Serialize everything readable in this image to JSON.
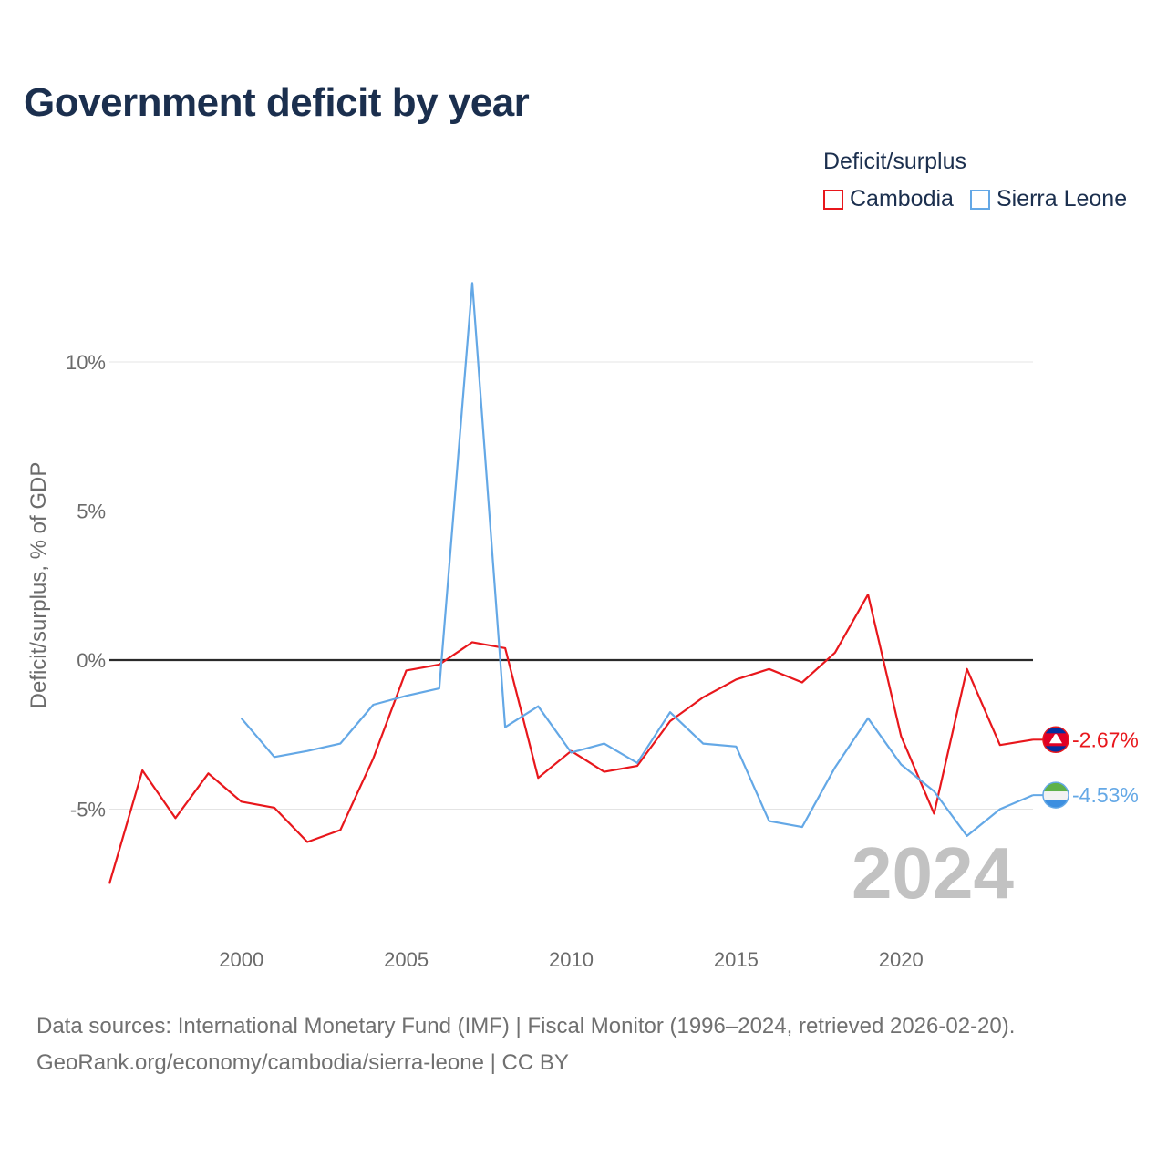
{
  "title": "Government deficit by year",
  "legend": {
    "title": "Deficit/surplus",
    "items": [
      {
        "label": "Cambodia",
        "color": "#e8171c"
      },
      {
        "label": "Sierra Leone",
        "color": "#64a8e6"
      }
    ]
  },
  "footer": {
    "line1": "Data sources: International Monetary Fund (IMF) | Fiscal Monitor (1996–2024, retrieved 2026-02-20).",
    "line2": "GeoRank.org/economy/cambodia/sierra-leone | CC BY"
  },
  "chart_data": {
    "type": "line",
    "title": "Government deficit by year",
    "ylabel": "Deficit/surplus, % of GDP",
    "xlabel": "",
    "xlim": [
      1996,
      2024
    ],
    "ylim": [
      -8.5,
      13
    ],
    "x_ticks": [
      2000,
      2005,
      2010,
      2015,
      2020
    ],
    "y_ticks": [
      {
        "value": 10,
        "label": "10%"
      },
      {
        "value": 5,
        "label": "5%"
      },
      {
        "value": 0,
        "label": "0%"
      },
      {
        "value": -5,
        "label": "-5%"
      }
    ],
    "year_label": "2024",
    "series": [
      {
        "name": "Cambodia",
        "color": "#e8171c",
        "end_label": "-2.67%",
        "x": [
          1996,
          1997,
          1998,
          1999,
          2000,
          2001,
          2002,
          2003,
          2004,
          2005,
          2006,
          2007,
          2008,
          2009,
          2010,
          2011,
          2012,
          2013,
          2014,
          2015,
          2016,
          2017,
          2018,
          2019,
          2020,
          2021,
          2022,
          2023,
          2024
        ],
        "values": [
          -7.5,
          -3.7,
          -5.3,
          -3.8,
          -4.75,
          -4.95,
          -6.1,
          -5.7,
          -3.3,
          -0.35,
          -0.15,
          0.6,
          0.4,
          -3.95,
          -3.05,
          -3.75,
          -3.55,
          -2.05,
          -1.25,
          -0.65,
          -0.3,
          -0.75,
          0.25,
          2.2,
          -2.55,
          -5.15,
          -0.3,
          -2.85,
          -2.67
        ]
      },
      {
        "name": "Sierra Leone",
        "color": "#64a8e6",
        "end_label": "-4.53%",
        "x": [
          2000,
          2001,
          2002,
          2003,
          2004,
          2005,
          2006,
          2007,
          2008,
          2009,
          2010,
          2011,
          2012,
          2013,
          2014,
          2015,
          2016,
          2017,
          2018,
          2019,
          2020,
          2021,
          2022,
          2023,
          2024
        ],
        "values": [
          -1.95,
          -3.25,
          -3.05,
          -2.8,
          -1.5,
          -1.2,
          -0.95,
          12.65,
          -2.25,
          -1.55,
          -3.1,
          -2.8,
          -3.45,
          -1.75,
          -2.8,
          -2.9,
          -5.4,
          -5.6,
          -3.6,
          -1.95,
          -3.5,
          -4.4,
          -5.9,
          -5.0,
          -4.53
        ]
      }
    ]
  }
}
